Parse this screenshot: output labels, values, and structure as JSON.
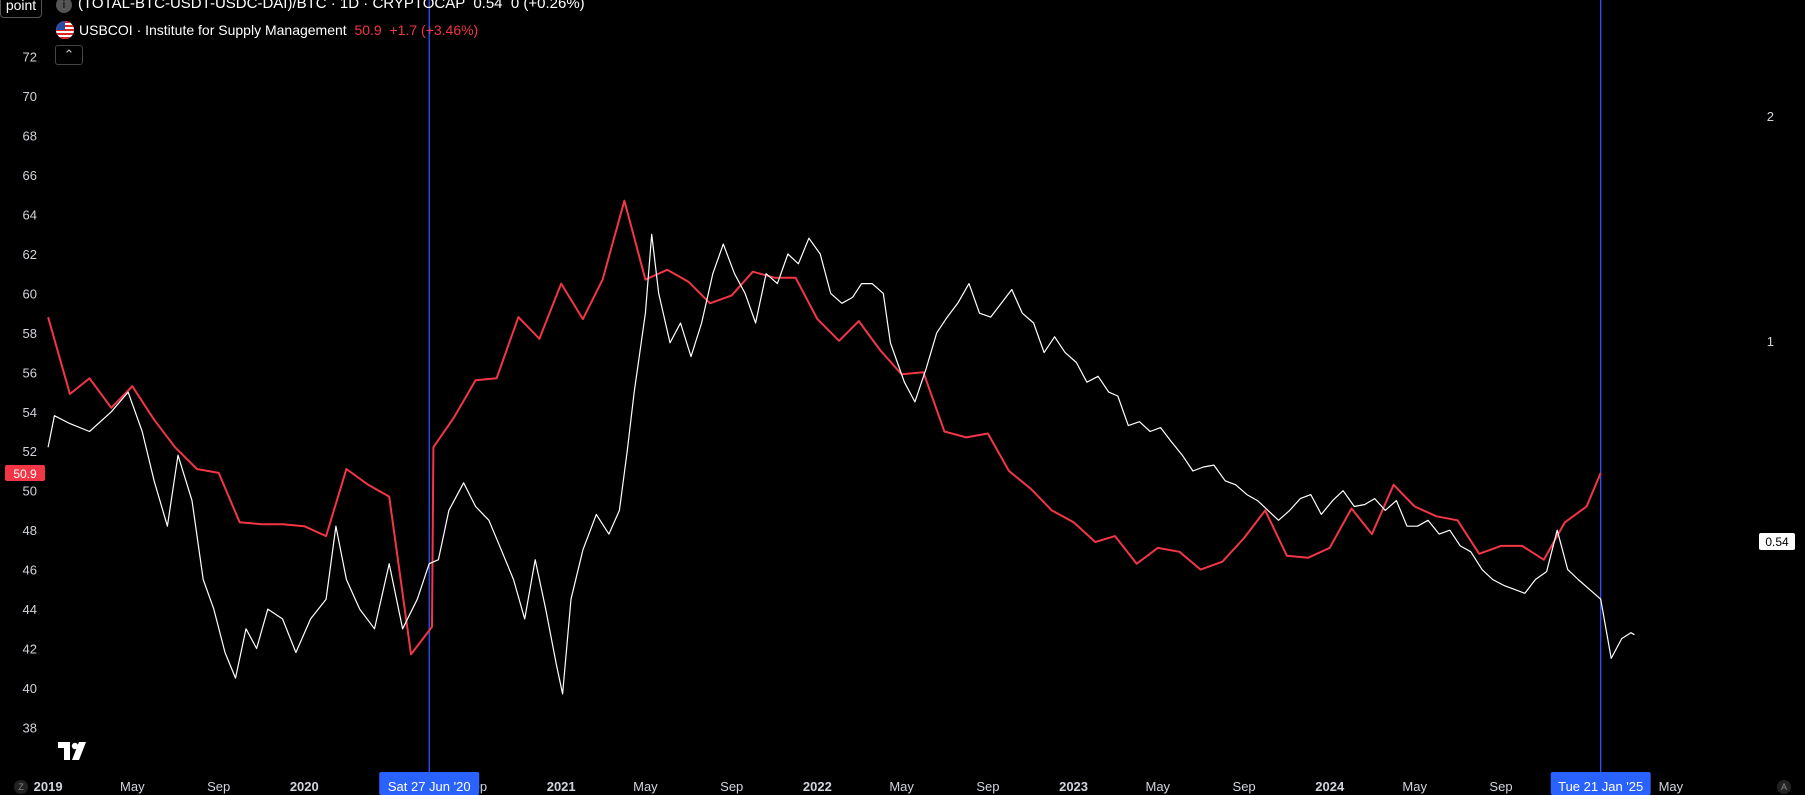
{
  "header": {
    "point_label": "point",
    "main_symbol": "(TOTAL-BTC-USDT-USDC-DAI)/BTC · 1D · CRYPTOCAP",
    "main_value": "0.54",
    "main_change": "0 (+0.26%)",
    "overlay_symbol": "USBCOI · Institute for Supply Management",
    "overlay_value": "50.9",
    "overlay_change": "+1.7 (+3.46%)",
    "collapse_icon": "chevron-up-icon",
    "info_icon": "info-icon",
    "flag_icon": "us-flag-icon",
    "logo_icon": "tradingview-logo-icon"
  },
  "chart_data": {
    "type": "line",
    "x_range": [
      "2018-12-29",
      "2025-09-05"
    ],
    "left_axis": {
      "ticks": [
        38,
        40,
        42,
        44,
        46,
        48,
        50,
        52,
        54,
        56,
        58,
        60,
        62,
        64,
        66,
        68,
        70,
        72
      ],
      "current_label": "50.9",
      "label_color": "#f23645"
    },
    "right_axis": {
      "ticks": [
        1,
        2
      ],
      "scale": "log",
      "current_label": "0.54"
    },
    "x_tick_labels": [
      {
        "date": "2019-01-01",
        "label": "2019",
        "bold": true
      },
      {
        "date": "2019-05-01",
        "label": "May"
      },
      {
        "date": "2019-09-01",
        "label": "Sep"
      },
      {
        "date": "2020-01-01",
        "label": "2020",
        "bold": true
      },
      {
        "date": "2020-09-01",
        "label": "Sep"
      },
      {
        "date": "2021-01-01",
        "label": "2021",
        "bold": true
      },
      {
        "date": "2021-05-01",
        "label": "May"
      },
      {
        "date": "2021-09-01",
        "label": "Sep"
      },
      {
        "date": "2022-01-01",
        "label": "2022",
        "bold": true
      },
      {
        "date": "2022-05-01",
        "label": "May"
      },
      {
        "date": "2022-09-01",
        "label": "Sep"
      },
      {
        "date": "2023-01-01",
        "label": "2023",
        "bold": true
      },
      {
        "date": "2023-05-01",
        "label": "May"
      },
      {
        "date": "2023-09-01",
        "label": "Sep"
      },
      {
        "date": "2024-01-01",
        "label": "2024",
        "bold": true
      },
      {
        "date": "2024-05-01",
        "label": "May"
      },
      {
        "date": "2024-09-01",
        "label": "Sep"
      },
      {
        "date": "2025-05-01",
        "label": "May"
      }
    ],
    "vertical_markers": [
      {
        "date": "2020-06-27",
        "label": "Sat 27 Jun '20"
      },
      {
        "date": "2025-01-21",
        "label": "Tue 21 Jan '25"
      }
    ],
    "series": [
      {
        "name": "USBCOI · Institute for Supply Management",
        "color": "#f23645",
        "axis": "left",
        "points": [
          [
            "2019-01-01",
            58.8
          ],
          [
            "2019-02-01",
            54.9
          ],
          [
            "2019-03-01",
            55.7
          ],
          [
            "2019-04-01",
            54.2
          ],
          [
            "2019-05-01",
            55.3
          ],
          [
            "2019-06-01",
            53.6
          ],
          [
            "2019-07-01",
            52.2
          ],
          [
            "2019-08-01",
            51.1
          ],
          [
            "2019-09-01",
            50.9
          ],
          [
            "2019-10-01",
            48.4
          ],
          [
            "2019-11-01",
            48.3
          ],
          [
            "2019-12-01",
            48.3
          ],
          [
            "2020-01-01",
            48.2
          ],
          [
            "2020-02-01",
            47.7
          ],
          [
            "2020-03-01",
            51.1
          ],
          [
            "2020-04-01",
            50.3
          ],
          [
            "2020-05-01",
            49.7
          ],
          [
            "2020-06-01",
            41.7
          ],
          [
            "2020-07-01",
            43.1
          ],
          [
            "2020-07-03",
            52.2
          ],
          [
            "2020-08-01",
            53.7
          ],
          [
            "2020-09-01",
            55.6
          ],
          [
            "2020-10-01",
            55.7
          ],
          [
            "2020-11-01",
            58.8
          ],
          [
            "2020-12-01",
            57.7
          ],
          [
            "2021-01-01",
            60.5
          ],
          [
            "2021-02-01",
            58.7
          ],
          [
            "2021-03-01",
            60.7
          ],
          [
            "2021-04-01",
            64.7
          ],
          [
            "2021-05-01",
            60.7
          ],
          [
            "2021-06-01",
            61.2
          ],
          [
            "2021-07-01",
            60.6
          ],
          [
            "2021-08-01",
            59.5
          ],
          [
            "2021-09-01",
            59.9
          ],
          [
            "2021-10-01",
            61.1
          ],
          [
            "2021-11-01",
            60.8
          ],
          [
            "2021-12-01",
            60.8
          ],
          [
            "2022-01-01",
            58.7
          ],
          [
            "2022-02-01",
            57.6
          ],
          [
            "2022-03-01",
            58.6
          ],
          [
            "2022-04-01",
            57.1
          ],
          [
            "2022-05-01",
            55.9
          ],
          [
            "2022-06-01",
            56.0
          ],
          [
            "2022-07-01",
            53.0
          ],
          [
            "2022-08-01",
            52.7
          ],
          [
            "2022-09-01",
            52.9
          ],
          [
            "2022-10-01",
            51.0
          ],
          [
            "2022-11-01",
            50.1
          ],
          [
            "2022-12-01",
            49.0
          ],
          [
            "2023-01-01",
            48.4
          ],
          [
            "2023-02-01",
            47.4
          ],
          [
            "2023-03-01",
            47.7
          ],
          [
            "2023-04-01",
            46.3
          ],
          [
            "2023-05-01",
            47.1
          ],
          [
            "2023-06-01",
            46.9
          ],
          [
            "2023-07-01",
            46.0
          ],
          [
            "2023-08-01",
            46.4
          ],
          [
            "2023-09-01",
            47.6
          ],
          [
            "2023-10-01",
            49.0
          ],
          [
            "2023-11-01",
            46.7
          ],
          [
            "2023-12-01",
            46.6
          ],
          [
            "2024-01-01",
            47.1
          ],
          [
            "2024-02-01",
            49.1
          ],
          [
            "2024-03-01",
            47.8
          ],
          [
            "2024-04-01",
            50.3
          ],
          [
            "2024-05-01",
            49.2
          ],
          [
            "2024-06-01",
            48.7
          ],
          [
            "2024-07-01",
            48.5
          ],
          [
            "2024-08-01",
            46.8
          ],
          [
            "2024-09-01",
            47.2
          ],
          [
            "2024-10-01",
            47.2
          ],
          [
            "2024-11-01",
            46.5
          ],
          [
            "2024-12-01",
            48.4
          ],
          [
            "2025-01-01",
            49.2
          ],
          [
            "2025-01-21",
            50.9
          ]
        ]
      },
      {
        "name": "(TOTAL-BTC-USDT-USDC-DAI)/BTC · 1D · CRYPTOCAP",
        "color": "#ffffff",
        "axis": "left",
        "points": [
          [
            "2019-01-01",
            52.2
          ],
          [
            "2019-01-10",
            53.8
          ],
          [
            "2019-02-01",
            53.4
          ],
          [
            "2019-03-01",
            53.0
          ],
          [
            "2019-04-01",
            54.0
          ],
          [
            "2019-04-25",
            55.0
          ],
          [
            "2019-05-15",
            53.0
          ],
          [
            "2019-06-01",
            50.5
          ],
          [
            "2019-06-20",
            48.2
          ],
          [
            "2019-07-05",
            51.8
          ],
          [
            "2019-07-25",
            49.5
          ],
          [
            "2019-08-10",
            45.5
          ],
          [
            "2019-08-25",
            44.0
          ],
          [
            "2019-09-10",
            41.8
          ],
          [
            "2019-09-25",
            40.5
          ],
          [
            "2019-10-10",
            43.0
          ],
          [
            "2019-10-25",
            42.0
          ],
          [
            "2019-11-10",
            44.0
          ],
          [
            "2019-12-01",
            43.5
          ],
          [
            "2019-12-20",
            41.8
          ],
          [
            "2020-01-10",
            43.5
          ],
          [
            "2020-02-01",
            44.5
          ],
          [
            "2020-02-15",
            48.2
          ],
          [
            "2020-03-01",
            45.5
          ],
          [
            "2020-03-20",
            44.0
          ],
          [
            "2020-04-10",
            43.0
          ],
          [
            "2020-05-01",
            46.3
          ],
          [
            "2020-05-20",
            43.0
          ],
          [
            "2020-06-10",
            44.5
          ],
          [
            "2020-06-27",
            46.3
          ],
          [
            "2020-07-10",
            46.5
          ],
          [
            "2020-07-25",
            49.0
          ],
          [
            "2020-08-15",
            50.4
          ],
          [
            "2020-09-01",
            49.2
          ],
          [
            "2020-09-20",
            48.5
          ],
          [
            "2020-10-10",
            46.8
          ],
          [
            "2020-10-25",
            45.5
          ],
          [
            "2020-11-10",
            43.5
          ],
          [
            "2020-11-25",
            46.5
          ],
          [
            "2020-12-10",
            44.0
          ],
          [
            "2020-12-25",
            41.2
          ],
          [
            "2021-01-03",
            39.7
          ],
          [
            "2021-01-15",
            44.5
          ],
          [
            "2021-02-01",
            47.0
          ],
          [
            "2021-02-20",
            48.8
          ],
          [
            "2021-03-10",
            47.8
          ],
          [
            "2021-03-25",
            49.0
          ],
          [
            "2021-04-05",
            52.0
          ],
          [
            "2021-04-15",
            55.0
          ],
          [
            "2021-05-01",
            59.0
          ],
          [
            "2021-05-10",
            63.0
          ],
          [
            "2021-05-20",
            60.0
          ],
          [
            "2021-06-05",
            57.5
          ],
          [
            "2021-06-20",
            58.5
          ],
          [
            "2021-07-05",
            56.8
          ],
          [
            "2021-07-20",
            58.5
          ],
          [
            "2021-08-05",
            61.0
          ],
          [
            "2021-08-20",
            62.5
          ],
          [
            "2021-09-05",
            61.0
          ],
          [
            "2021-09-20",
            60.0
          ],
          [
            "2021-10-05",
            58.5
          ],
          [
            "2021-10-20",
            61.0
          ],
          [
            "2021-11-05",
            60.5
          ],
          [
            "2021-11-20",
            62.0
          ],
          [
            "2021-12-05",
            61.5
          ],
          [
            "2021-12-20",
            62.8
          ],
          [
            "2022-01-05",
            62.0
          ],
          [
            "2022-01-20",
            60.0
          ],
          [
            "2022-02-05",
            59.5
          ],
          [
            "2022-02-20",
            59.8
          ],
          [
            "2022-03-05",
            60.5
          ],
          [
            "2022-03-20",
            60.5
          ],
          [
            "2022-04-05",
            60.0
          ],
          [
            "2022-04-15",
            57.5
          ],
          [
            "2022-04-25",
            56.5
          ],
          [
            "2022-05-05",
            55.5
          ],
          [
            "2022-05-20",
            54.5
          ],
          [
            "2022-06-05",
            56.2
          ],
          [
            "2022-06-20",
            58.0
          ],
          [
            "2022-07-05",
            58.8
          ],
          [
            "2022-07-20",
            59.5
          ],
          [
            "2022-08-05",
            60.5
          ],
          [
            "2022-08-20",
            59.0
          ],
          [
            "2022-09-05",
            58.8
          ],
          [
            "2022-09-20",
            59.5
          ],
          [
            "2022-10-05",
            60.2
          ],
          [
            "2022-10-20",
            59.0
          ],
          [
            "2022-11-05",
            58.5
          ],
          [
            "2022-11-20",
            57.0
          ],
          [
            "2022-12-05",
            57.8
          ],
          [
            "2022-12-20",
            57.0
          ],
          [
            "2023-01-05",
            56.5
          ],
          [
            "2023-01-20",
            55.5
          ],
          [
            "2023-02-05",
            55.8
          ],
          [
            "2023-02-20",
            55.0
          ],
          [
            "2023-03-05",
            54.8
          ],
          [
            "2023-03-20",
            53.3
          ],
          [
            "2023-04-05",
            53.5
          ],
          [
            "2023-04-20",
            53.0
          ],
          [
            "2023-05-05",
            53.2
          ],
          [
            "2023-05-20",
            52.5
          ],
          [
            "2023-06-05",
            51.8
          ],
          [
            "2023-06-20",
            51.0
          ],
          [
            "2023-07-05",
            51.2
          ],
          [
            "2023-07-20",
            51.3
          ],
          [
            "2023-08-05",
            50.5
          ],
          [
            "2023-08-20",
            50.3
          ],
          [
            "2023-09-05",
            49.8
          ],
          [
            "2023-09-20",
            49.5
          ],
          [
            "2023-10-05",
            49.0
          ],
          [
            "2023-10-20",
            48.5
          ],
          [
            "2023-11-05",
            49.0
          ],
          [
            "2023-11-20",
            49.6
          ],
          [
            "2023-12-05",
            49.8
          ],
          [
            "2023-12-20",
            48.8
          ],
          [
            "2024-01-05",
            49.5
          ],
          [
            "2024-01-20",
            50.0
          ],
          [
            "2024-02-05",
            49.2
          ],
          [
            "2024-02-20",
            49.3
          ],
          [
            "2024-03-05",
            49.6
          ],
          [
            "2024-03-20",
            49.0
          ],
          [
            "2024-04-05",
            49.5
          ],
          [
            "2024-04-20",
            48.2
          ],
          [
            "2024-05-05",
            48.2
          ],
          [
            "2024-05-20",
            48.5
          ],
          [
            "2024-06-05",
            47.8
          ],
          [
            "2024-06-20",
            48.0
          ],
          [
            "2024-07-05",
            47.2
          ],
          [
            "2024-07-20",
            46.9
          ],
          [
            "2024-08-05",
            46.0
          ],
          [
            "2024-08-20",
            45.5
          ],
          [
            "2024-09-05",
            45.2
          ],
          [
            "2024-09-20",
            45.0
          ],
          [
            "2024-10-05",
            44.8
          ],
          [
            "2024-10-20",
            45.5
          ],
          [
            "2024-11-05",
            45.9
          ],
          [
            "2024-11-20",
            48.0
          ],
          [
            "2024-12-05",
            46.0
          ],
          [
            "2024-12-20",
            45.5
          ],
          [
            "2025-01-05",
            45.0
          ],
          [
            "2025-01-21",
            44.5
          ],
          [
            "2025-02-05",
            41.5
          ],
          [
            "2025-02-20",
            42.5
          ],
          [
            "2025-03-05",
            42.8
          ],
          [
            "2025-03-10",
            42.7
          ]
        ]
      }
    ],
    "grid": false,
    "legend": "top-left"
  }
}
